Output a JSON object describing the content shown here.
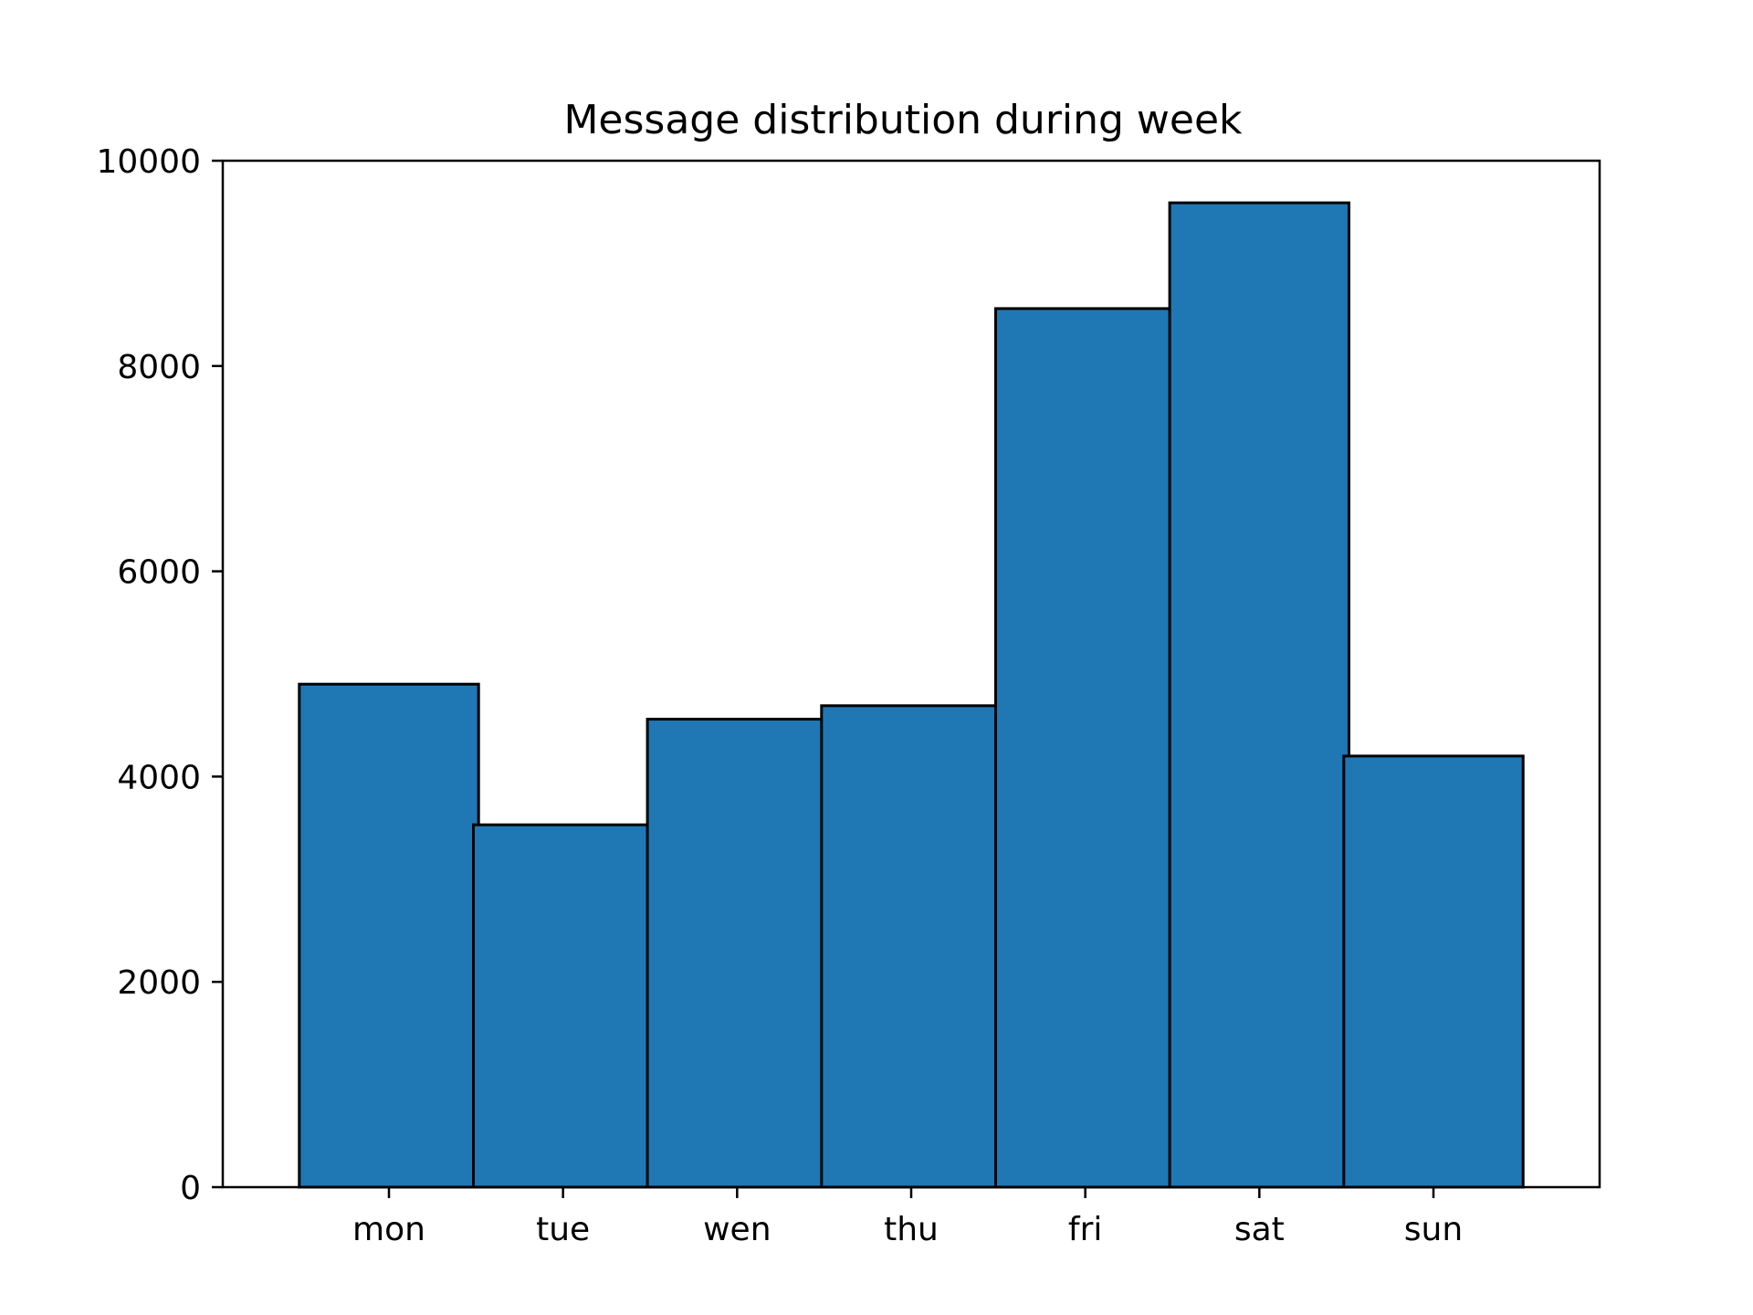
{
  "chart_data": {
    "type": "bar",
    "title": "Message distribution during week",
    "xlabel": "",
    "ylabel": "",
    "categories": [
      "mon",
      "tue",
      "wen",
      "thu",
      "fri",
      "sat",
      "sun"
    ],
    "values": [
      4900,
      3530,
      4560,
      4690,
      8560,
      9590,
      4200
    ],
    "ylim": [
      0,
      10000
    ],
    "yticks": [
      "0",
      "2000",
      "4000",
      "6000",
      "8000",
      "10000"
    ],
    "grid": false,
    "legend": "none",
    "colors": {
      "bar_fill": "#1f77b4",
      "bar_edge": "#000000",
      "axis": "#000000",
      "background": "#ffffff"
    }
  }
}
